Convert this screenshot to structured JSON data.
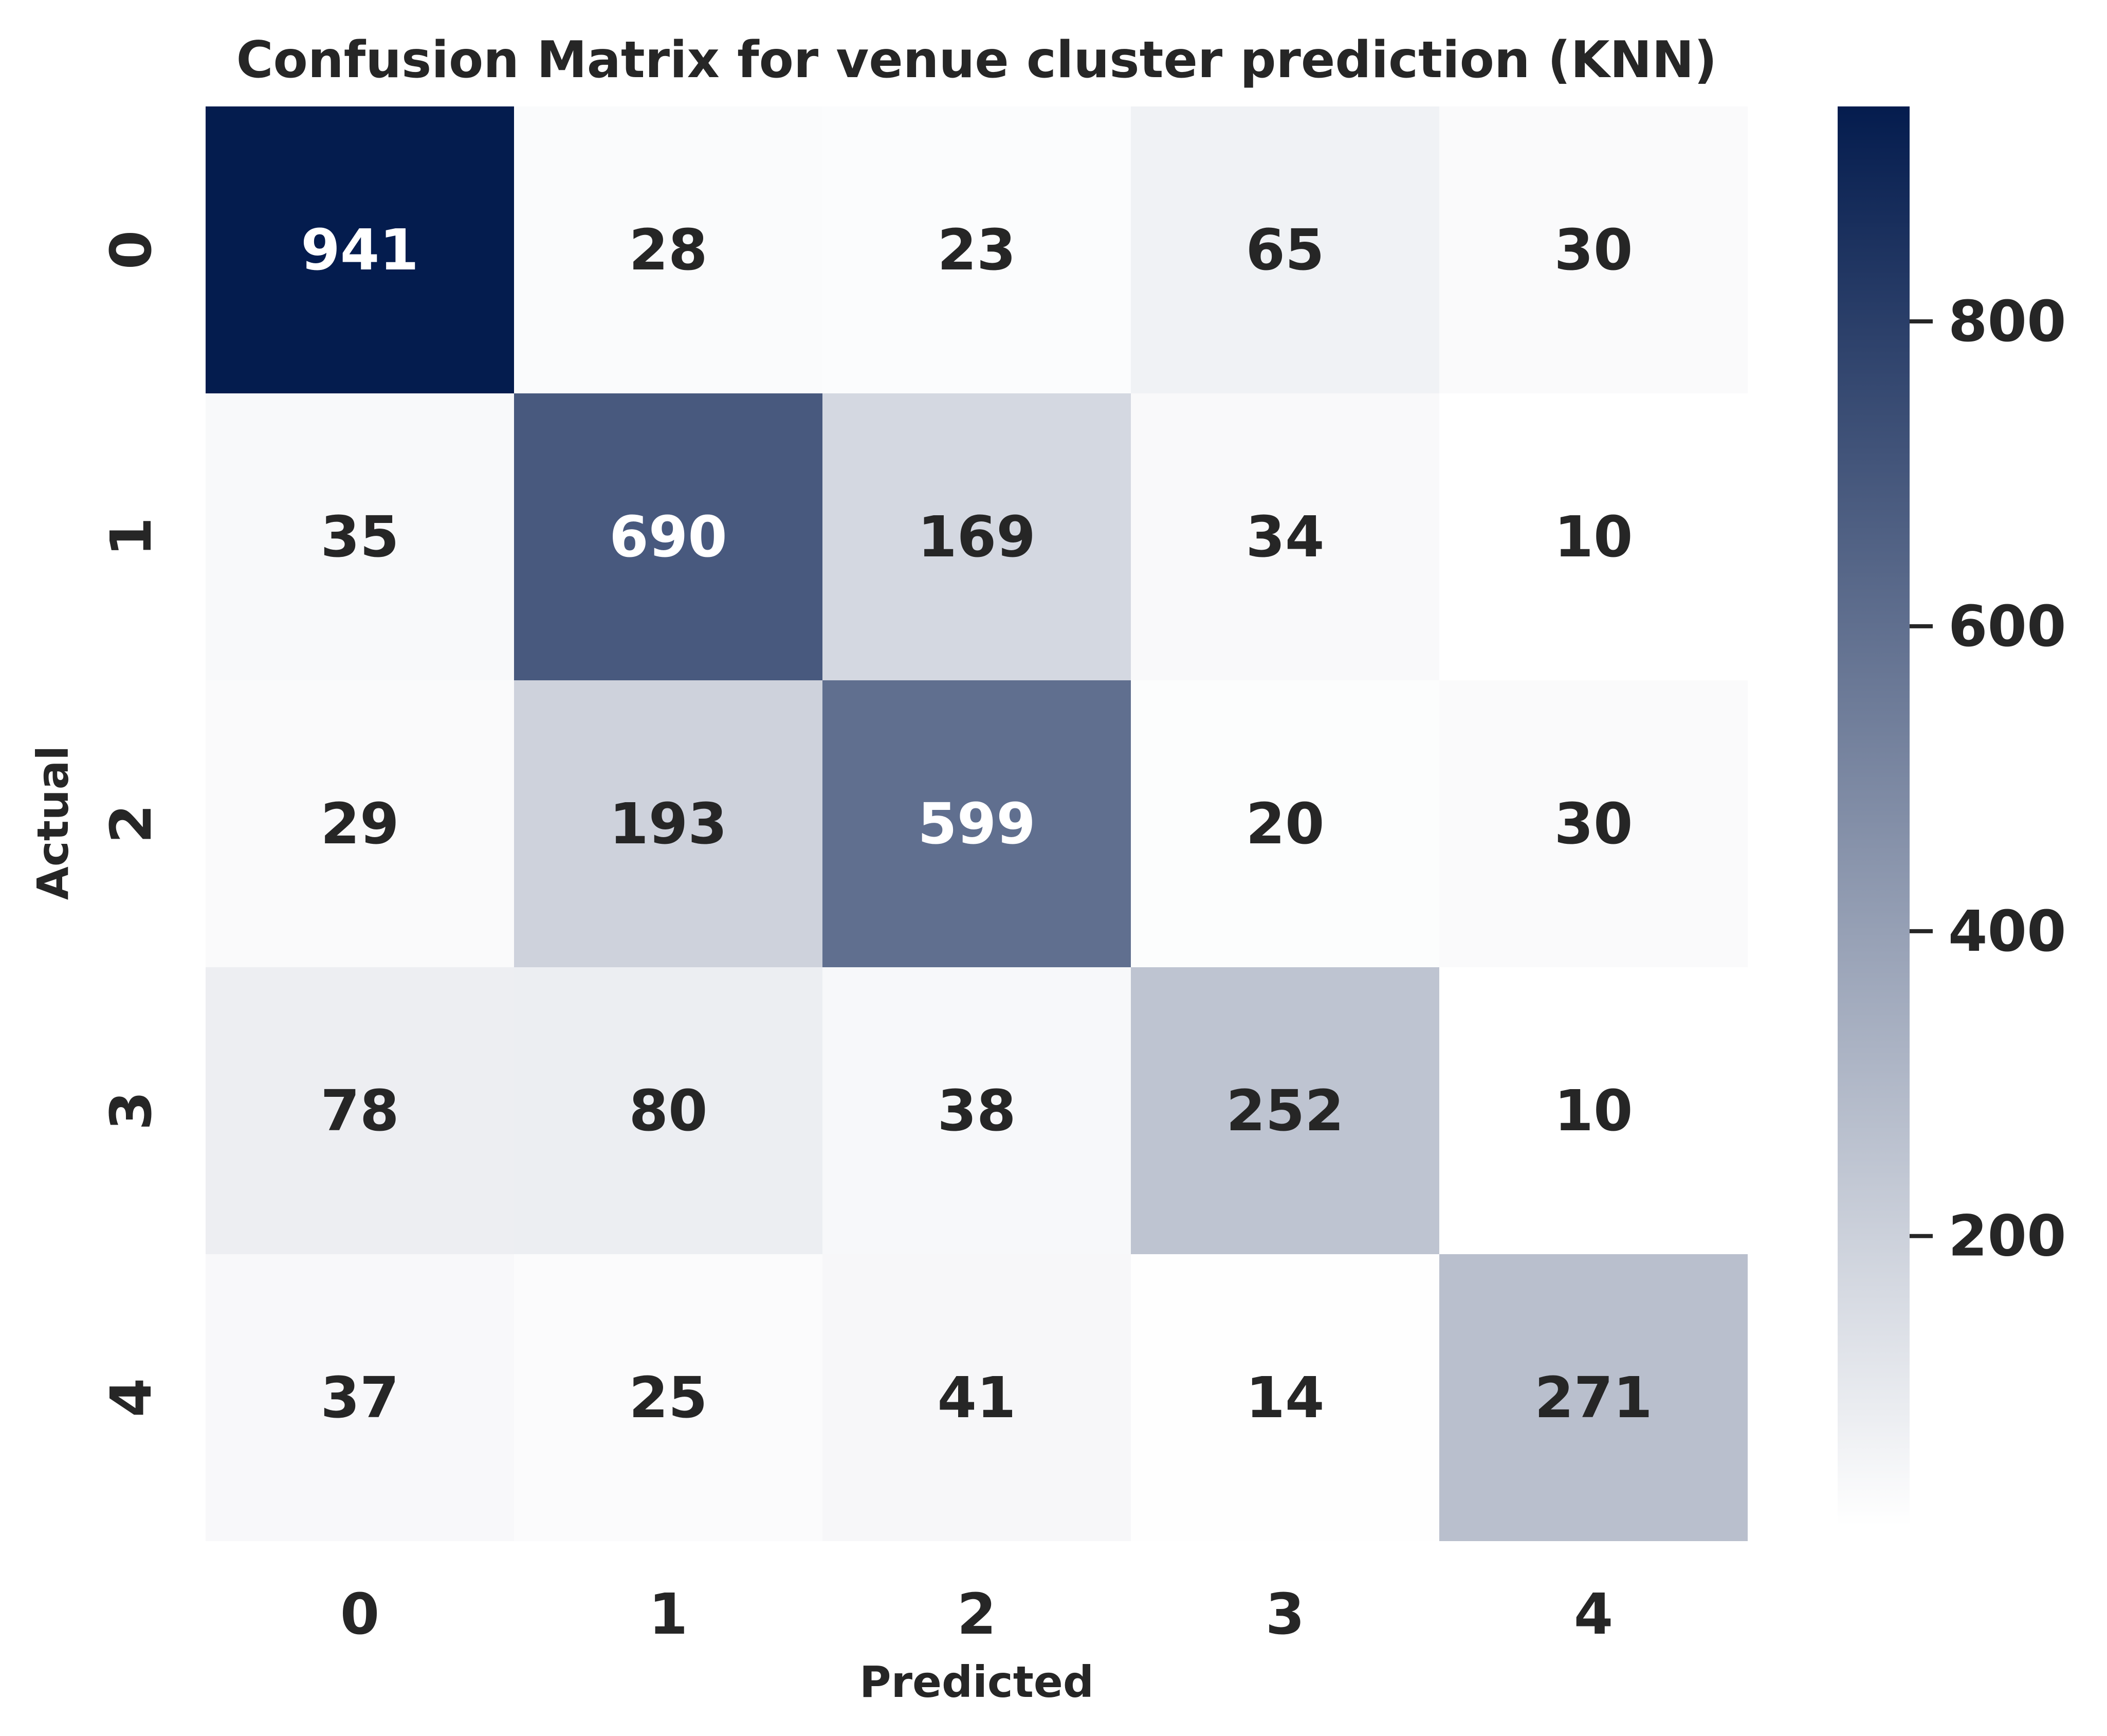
{
  "chart_data": {
    "type": "heatmap",
    "title": "Confusion Matrix for venue cluster prediction (KNN)",
    "xlabel": "Predicted",
    "ylabel": "Actual",
    "x_categories": [
      "0",
      "1",
      "2",
      "3",
      "4"
    ],
    "y_categories": [
      "0",
      "1",
      "2",
      "3",
      "4"
    ],
    "values": [
      [
        941,
        28,
        23,
        65,
        30
      ],
      [
        35,
        690,
        169,
        34,
        10
      ],
      [
        29,
        193,
        599,
        20,
        30
      ],
      [
        78,
        80,
        38,
        252,
        10
      ],
      [
        37,
        25,
        41,
        14,
        271
      ]
    ],
    "colorbar": {
      "min": 10,
      "max": 941,
      "ticks": [
        "200",
        "400",
        "600",
        "800"
      ],
      "color_low": "#ffffff",
      "color_high": "#041c4e"
    }
  }
}
